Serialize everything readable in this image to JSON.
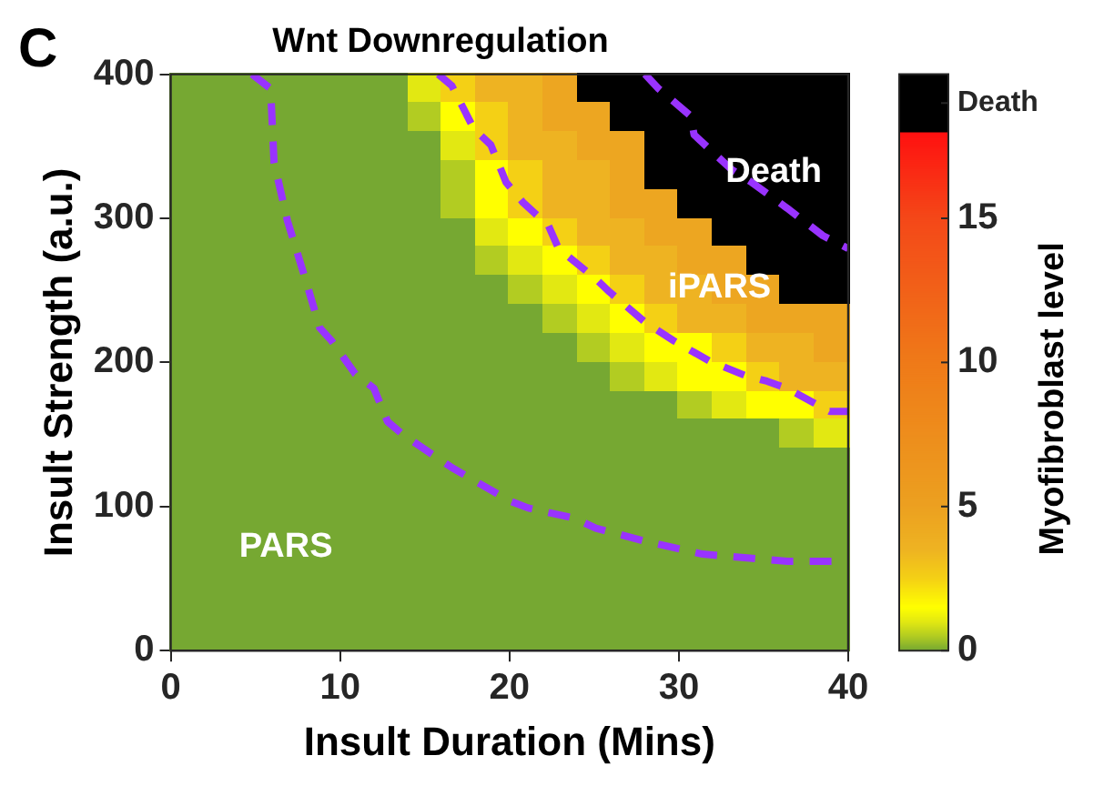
{
  "chart_data": {
    "type": "heatmap",
    "title": "Wnt Downregulation",
    "xlabel": "Insult Duration (Mins)",
    "ylabel": "Insult Strength (a.u.)",
    "clabel": "Myofibroblast level",
    "xlim": [
      0,
      40
    ],
    "ylim": [
      0,
      400
    ],
    "xticks": [
      0,
      10,
      20,
      30,
      40
    ],
    "yticks": [
      0,
      100,
      200,
      300,
      400
    ],
    "clim": [
      0,
      20
    ],
    "cticks": [
      0,
      5,
      10,
      15,
      {
        "value": 19,
        "label": "Death"
      }
    ],
    "legend": false,
    "cells": [
      [
        0,
        0,
        0,
        0,
        0,
        0,
        0,
        1,
        2.5,
        3.5,
        3.5,
        4.5,
        19,
        19,
        19,
        19,
        19,
        19,
        19,
        19
      ],
      [
        0,
        0,
        0,
        0,
        0,
        0,
        0,
        0.5,
        1.5,
        2.5,
        3.5,
        4.5,
        4.5,
        19,
        19,
        19,
        19,
        19,
        19,
        19
      ],
      [
        0,
        0,
        0,
        0,
        0,
        0,
        0,
        0,
        1,
        2.5,
        3.5,
        3.5,
        4.5,
        4.5,
        19,
        19,
        19,
        19,
        19,
        19
      ],
      [
        0,
        0,
        0,
        0,
        0,
        0,
        0,
        0,
        0.5,
        1.5,
        2.5,
        3.5,
        3.5,
        4.5,
        19,
        19,
        19,
        19,
        19,
        19
      ],
      [
        0,
        0,
        0,
        0,
        0,
        0,
        0,
        0,
        0.5,
        1.5,
        2.5,
        3.5,
        3.5,
        4.5,
        4.5,
        19,
        19,
        19,
        19,
        19
      ],
      [
        0,
        0,
        0,
        0,
        0,
        0,
        0,
        0,
        0,
        1,
        1.5,
        2.5,
        3.5,
        3.5,
        4.5,
        4.5,
        19,
        19,
        19,
        19
      ],
      [
        0,
        0,
        0,
        0,
        0,
        0,
        0,
        0,
        0,
        0.5,
        1,
        1.5,
        2.5,
        3.5,
        3.5,
        4.5,
        4.5,
        19,
        19,
        19
      ],
      [
        0,
        0,
        0,
        0,
        0,
        0,
        0,
        0,
        0,
        0,
        0.5,
        1,
        1.5,
        2.5,
        3.5,
        3.5,
        4.5,
        4.5,
        19,
        19
      ],
      [
        0,
        0,
        0,
        0,
        0,
        0,
        0,
        0,
        0,
        0,
        0,
        0.5,
        1,
        1.5,
        2.5,
        3.5,
        3.5,
        4.5,
        4.5,
        4.5
      ],
      [
        0,
        0,
        0,
        0,
        0,
        0,
        0,
        0,
        0,
        0,
        0,
        0,
        0.5,
        1,
        1.5,
        1.5,
        2.5,
        3.5,
        3.5,
        4.5
      ],
      [
        0,
        0,
        0,
        0,
        0,
        0,
        0,
        0,
        0,
        0,
        0,
        0,
        0,
        0.5,
        1,
        1.5,
        1.5,
        2.5,
        3.5,
        3.5
      ],
      [
        0,
        0,
        0,
        0,
        0,
        0,
        0,
        0,
        0,
        0,
        0,
        0,
        0,
        0,
        0,
        0.5,
        1,
        1.5,
        1.5,
        2.5
      ],
      [
        0,
        0,
        0,
        0,
        0,
        0,
        0,
        0,
        0,
        0,
        0,
        0,
        0,
        0,
        0,
        0,
        0,
        0,
        0.5,
        1
      ],
      [
        0,
        0,
        0,
        0,
        0,
        0,
        0,
        0,
        0,
        0,
        0,
        0,
        0,
        0,
        0,
        0,
        0,
        0,
        0,
        0
      ],
      [
        0,
        0,
        0,
        0,
        0,
        0,
        0,
        0,
        0,
        0,
        0,
        0,
        0,
        0,
        0,
        0,
        0,
        0,
        0,
        0
      ],
      [
        0,
        0,
        0,
        0,
        0,
        0,
        0,
        0,
        0,
        0,
        0,
        0,
        0,
        0,
        0,
        0,
        0,
        0,
        0,
        0
      ],
      [
        0,
        0,
        0,
        0,
        0,
        0,
        0,
        0,
        0,
        0,
        0,
        0,
        0,
        0,
        0,
        0,
        0,
        0,
        0,
        0
      ],
      [
        0,
        0,
        0,
        0,
        0,
        0,
        0,
        0,
        0,
        0,
        0,
        0,
        0,
        0,
        0,
        0,
        0,
        0,
        0,
        0
      ],
      [
        0,
        0,
        0,
        0,
        0,
        0,
        0,
        0,
        0,
        0,
        0,
        0,
        0,
        0,
        0,
        0,
        0,
        0,
        0,
        0
      ],
      [
        0,
        0,
        0,
        0,
        0,
        0,
        0,
        0,
        0,
        0,
        0,
        0,
        0,
        0,
        0,
        0,
        0,
        0,
        0,
        0
      ]
    ],
    "series": [
      {
        "type": "line",
        "color": "#9933ff",
        "line_style": "dashed",
        "marker": "none",
        "x": [
          4.8,
          5.9,
          6.1,
          6.9,
          8.0,
          8.8,
          9.5,
          10.9,
          12.0,
          12.8,
          13.7,
          16.6,
          20.0,
          21.1,
          23.8,
          25.1,
          28,
          31.4,
          36.4,
          40
        ],
        "values": [
          400,
          390,
          339,
          298,
          256,
          224,
          215,
          192,
          182,
          159,
          150,
          127,
          104,
          99,
          92,
          85,
          76,
          67,
          62,
          62
        ]
      },
      {
        "type": "line",
        "color": "#9933ff",
        "line_style": "dashed",
        "marker": "none",
        "x": [
          15.8,
          16.6,
          17.9,
          18.9,
          19.8,
          20.8,
          22.3,
          22.9,
          25.1,
          25.9,
          28,
          29.7,
          31.8,
          33.9,
          35.2,
          36.4,
          38.9,
          40
        ],
        "values": [
          400,
          392,
          362,
          351,
          325,
          311,
          295,
          279,
          258,
          249,
          228,
          215,
          201,
          191,
          187,
          182,
          166,
          166
        ]
      },
      {
        "type": "line",
        "color": "#9933ff",
        "line_style": "dashed",
        "marker": "none",
        "x": [
          28,
          28.8,
          30.7,
          30.9,
          33.1,
          34.3,
          36.4,
          38.5,
          40
        ],
        "values": [
          400,
          390,
          371,
          358,
          334,
          325,
          307,
          288,
          279
        ]
      }
    ],
    "annotations": [
      "C",
      "Death",
      "iPARS",
      "PARS"
    ]
  }
}
